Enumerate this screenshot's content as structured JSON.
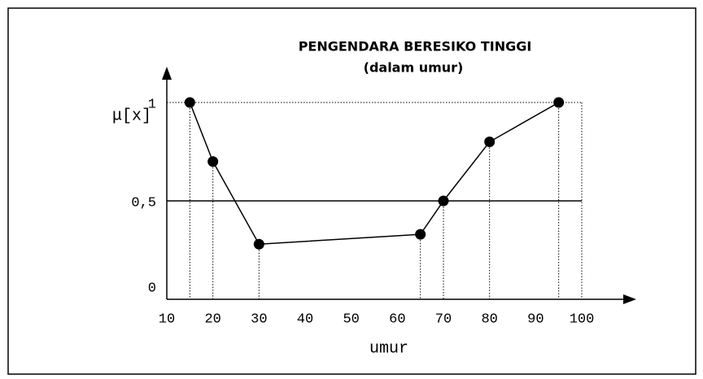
{
  "chart_data": {
    "type": "line",
    "title": "PENGENDARA BERESIKO TINGGI",
    "subtitle": "(dalam umur)",
    "y_label": "μ[x]",
    "x_label": "umur",
    "x": [
      15,
      20,
      30,
      65,
      70,
      80,
      95
    ],
    "series": [
      {
        "name": "beresiko tinggi",
        "color": "#000000",
        "values": [
          1,
          0.7,
          0.28,
          0.33,
          0.5,
          0.8,
          1
        ]
      }
    ],
    "xlim": [
      10,
      100
    ],
    "xticks": [
      10,
      20,
      30,
      40,
      50,
      60,
      70,
      80,
      90,
      100
    ],
    "ylim": [
      0,
      1
    ],
    "yticks": [
      0,
      {
        "value": 0.5,
        "label": "0,5"
      },
      1
    ]
  }
}
